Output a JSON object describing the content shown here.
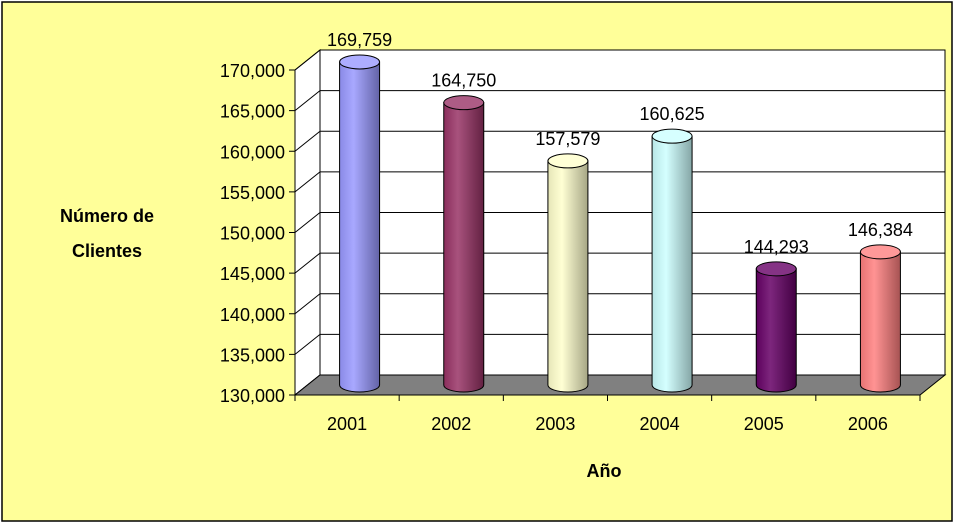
{
  "chart_data": {
    "type": "bar",
    "title": "",
    "xlabel": "Año",
    "ylabel_line1": "Número de",
    "ylabel_line2": "Clientes",
    "categories": [
      "2001",
      "2002",
      "2003",
      "2004",
      "2005",
      "2006"
    ],
    "values": [
      169759,
      164750,
      157579,
      160625,
      144293,
      146384
    ],
    "value_labels": [
      "169,759",
      "164,750",
      "157,579",
      "160,625",
      "144,293",
      "146,384"
    ],
    "ylim": [
      130000,
      170000
    ],
    "yticks": [
      130000,
      135000,
      140000,
      145000,
      150000,
      155000,
      160000,
      165000,
      170000
    ],
    "ytick_labels": [
      "130,000",
      "135,000",
      "140,000",
      "145,000",
      "150,000",
      "155,000",
      "160,000",
      "165,000",
      "170,000"
    ],
    "grid": true,
    "legend": "none",
    "style": "3d-cylinder",
    "colors": {
      "background": "#FFFF99",
      "plot_area": "#FFFFFF",
      "floor": "#808080",
      "series": [
        "#9999FF",
        "#993366",
        "#FFFFCC",
        "#CCFFFF",
        "#660066",
        "#FF8080"
      ]
    }
  }
}
